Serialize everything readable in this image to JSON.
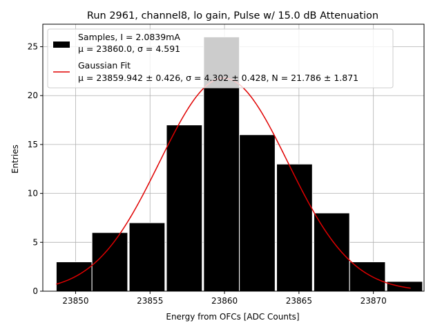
{
  "chart_data": {
    "type": "bar",
    "title": "Run 2961, channel8, lo gain, Pulse w/ 15.0 dB Attenuation",
    "xlabel": "Energy from OFCs [ADC Counts]",
    "ylabel": "Entries",
    "xlim": [
      23847.8,
      23873.4
    ],
    "ylim": [
      0,
      27.3
    ],
    "xticks": [
      23850,
      23855,
      23860,
      23865,
      23870
    ],
    "xtick_labels": [
      "23850",
      "23855",
      "23860",
      "23865",
      "23870"
    ],
    "yticks": [
      0,
      5,
      10,
      15,
      20,
      25
    ],
    "ytick_labels": [
      "0",
      "5",
      "10",
      "15",
      "20",
      "25"
    ],
    "grid": true,
    "legend_position": "top-left",
    "bin_edges": [
      23848.7,
      23851.2,
      23853.7,
      23856.2,
      23858.7,
      23861.2,
      23863.7,
      23866.2,
      23868.7,
      23871.2,
      23873.7
    ],
    "bins": [
      {
        "x0": 23848.7,
        "x1": 23851.1,
        "count": 3
      },
      {
        "x0": 23851.1,
        "x1": 23853.5,
        "count": 6
      },
      {
        "x0": 23853.6,
        "x1": 23856.0,
        "count": 7
      },
      {
        "x0": 23856.1,
        "x1": 23858.5,
        "count": 17
      },
      {
        "x0": 23858.6,
        "x1": 23861.0,
        "count": 26
      },
      {
        "x0": 23861.0,
        "x1": 23863.4,
        "count": 16
      },
      {
        "x0": 23863.5,
        "x1": 23865.9,
        "count": 13
      },
      {
        "x0": 23866.0,
        "x1": 23868.4,
        "count": 8
      },
      {
        "x0": 23868.4,
        "x1": 23870.8,
        "count": 3
      },
      {
        "x0": 23870.9,
        "x1": 23873.3,
        "count": 1
      }
    ],
    "series": [
      {
        "name": "Samples, I = 2.0839mA",
        "name_line2": "μ = 23860.0, σ = 4.591",
        "type": "histogram",
        "color": "#000000",
        "edge_color": "#ffffff"
      },
      {
        "name": "Gaussian Fit",
        "name_line2": "μ = 23859.942 ± 0.426, σ = 4.302 ± 0.428, N = 21.786 ± 1.871",
        "type": "line",
        "color": "#e00000",
        "mu": 23859.942,
        "sigma": 4.302,
        "N": 21.786,
        "x_range": [
          23848.7,
          23872.5
        ]
      }
    ]
  }
}
